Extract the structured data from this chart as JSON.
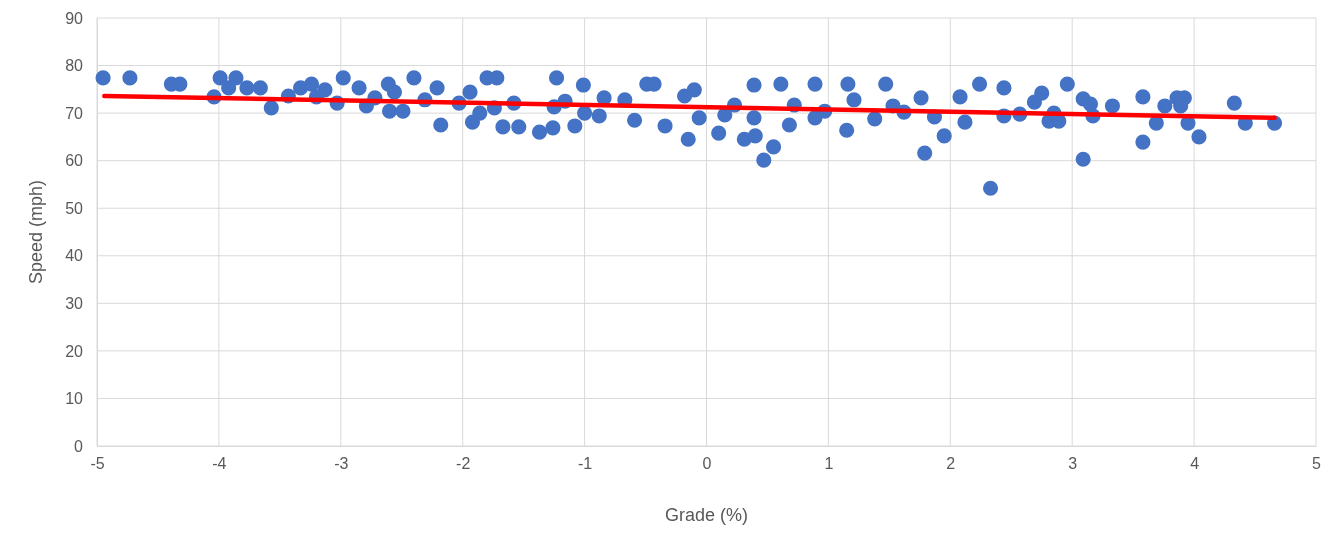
{
  "chart_data": {
    "type": "scatter",
    "xlabel": "Grade (%)",
    "ylabel": "Speed (mph)",
    "xlim": [
      -5,
      5
    ],
    "xticks": [
      -5,
      -4,
      -3,
      -2,
      -1,
      0,
      1,
      2,
      3,
      4,
      5
    ],
    "ylim": [
      0,
      90
    ],
    "yticks": [
      0,
      10,
      20,
      30,
      40,
      50,
      60,
      70,
      80,
      90
    ],
    "grid": true,
    "series": [
      {
        "marker": "circle",
        "color": "#4472c4",
        "x": [
          -4.95,
          -4.73,
          -4.39,
          -4.32,
          -4.04,
          -3.99,
          -3.86,
          -3.92,
          -3.77,
          -3.66,
          -3.57,
          -3.43,
          -3.33,
          -3.24,
          -3.13,
          -3.03,
          -2.98,
          -2.85,
          -2.79,
          -2.61,
          -2.6,
          -2.49,
          -2.4,
          -2.21,
          -2.18,
          -1.94,
          -1.92,
          -1.8,
          -1.72,
          -1.67,
          -1.54,
          -1.37,
          -1.25,
          -1.23,
          -1.26,
          -1.01,
          -1.08,
          -0.84,
          -0.49,
          -0.43,
          -0.15,
          0.1,
          0.31,
          0.39,
          0.4,
          0.47,
          0.55,
          0.61,
          0.89,
          1.16,
          1.15,
          1.47,
          1.76,
          1.79,
          1.95,
          2.24,
          2.33,
          2.96,
          3.09,
          3.09,
          3.15,
          3.17,
          3.33,
          3.58,
          3.58,
          3.69,
          3.76,
          3.86,
          3.92,
          3.89,
          3.95,
          4.04,
          4.33,
          4.42,
          4.66,
          2.69,
          2.57,
          2.81,
          2.89,
          2.75,
          2.44,
          2.44,
          2.12,
          2.08,
          1.87,
          1.62,
          1.38,
          1.53,
          1.21,
          0.97,
          0.72,
          0.68,
          0.23,
          0.15,
          -0.06,
          -0.18,
          -0.34,
          -0.59,
          -0.67,
          -0.88,
          -1.0,
          -1.16,
          -1.58,
          -1.74,
          -1.86,
          -2.03,
          -2.31,
          -2.56,
          -2.72,
          -3.2,
          -0.1,
          0.39,
          0.89,
          2.85
        ],
        "values": [
          77.4,
          77.4,
          76.1,
          76.1,
          73.4,
          77.4,
          77.4,
          75.3,
          75.3,
          75.3,
          71.1,
          73.6,
          75.3,
          76.1,
          74.9,
          72.1,
          77.4,
          75.3,
          71.5,
          76.1,
          70.4,
          70.4,
          77.4,
          75.3,
          67.5,
          74.4,
          68.1,
          77.4,
          77.4,
          67.1,
          67.1,
          66.0,
          71.3,
          77.4,
          66.9,
          75.9,
          67.3,
          73.2,
          76.1,
          76.1,
          64.5,
          65.8,
          64.5,
          75.9,
          65.2,
          60.1,
          62.9,
          76.1,
          76.1,
          76.1,
          66.4,
          76.1,
          73.2,
          61.6,
          65.2,
          76.1,
          54.2,
          76.1,
          73.0,
          60.3,
          71.9,
          69.4,
          71.5,
          73.4,
          63.9,
          67.9,
          71.5,
          73.2,
          73.2,
          71.5,
          67.9,
          65.0,
          72.1,
          67.9,
          67.9,
          72.3,
          69.8,
          68.3,
          68.3,
          74.2,
          75.3,
          69.4,
          68.1,
          73.4,
          69.2,
          70.2,
          68.8,
          71.5,
          72.8,
          70.4,
          71.7,
          67.5,
          71.7,
          69.6,
          69.0,
          73.6,
          67.3,
          68.5,
          72.8,
          69.4,
          70.0,
          72.5,
          72.1,
          71.1,
          70.0,
          72.1,
          72.8,
          74.4,
          73.2,
          73.4,
          74.9,
          69.0,
          69.0,
          70.0
        ]
      },
      {
        "type": "line",
        "color": "#ff0000",
        "x": [
          -4.94,
          4.66
        ],
        "values": [
          73.6,
          69.0
        ]
      }
    ]
  }
}
